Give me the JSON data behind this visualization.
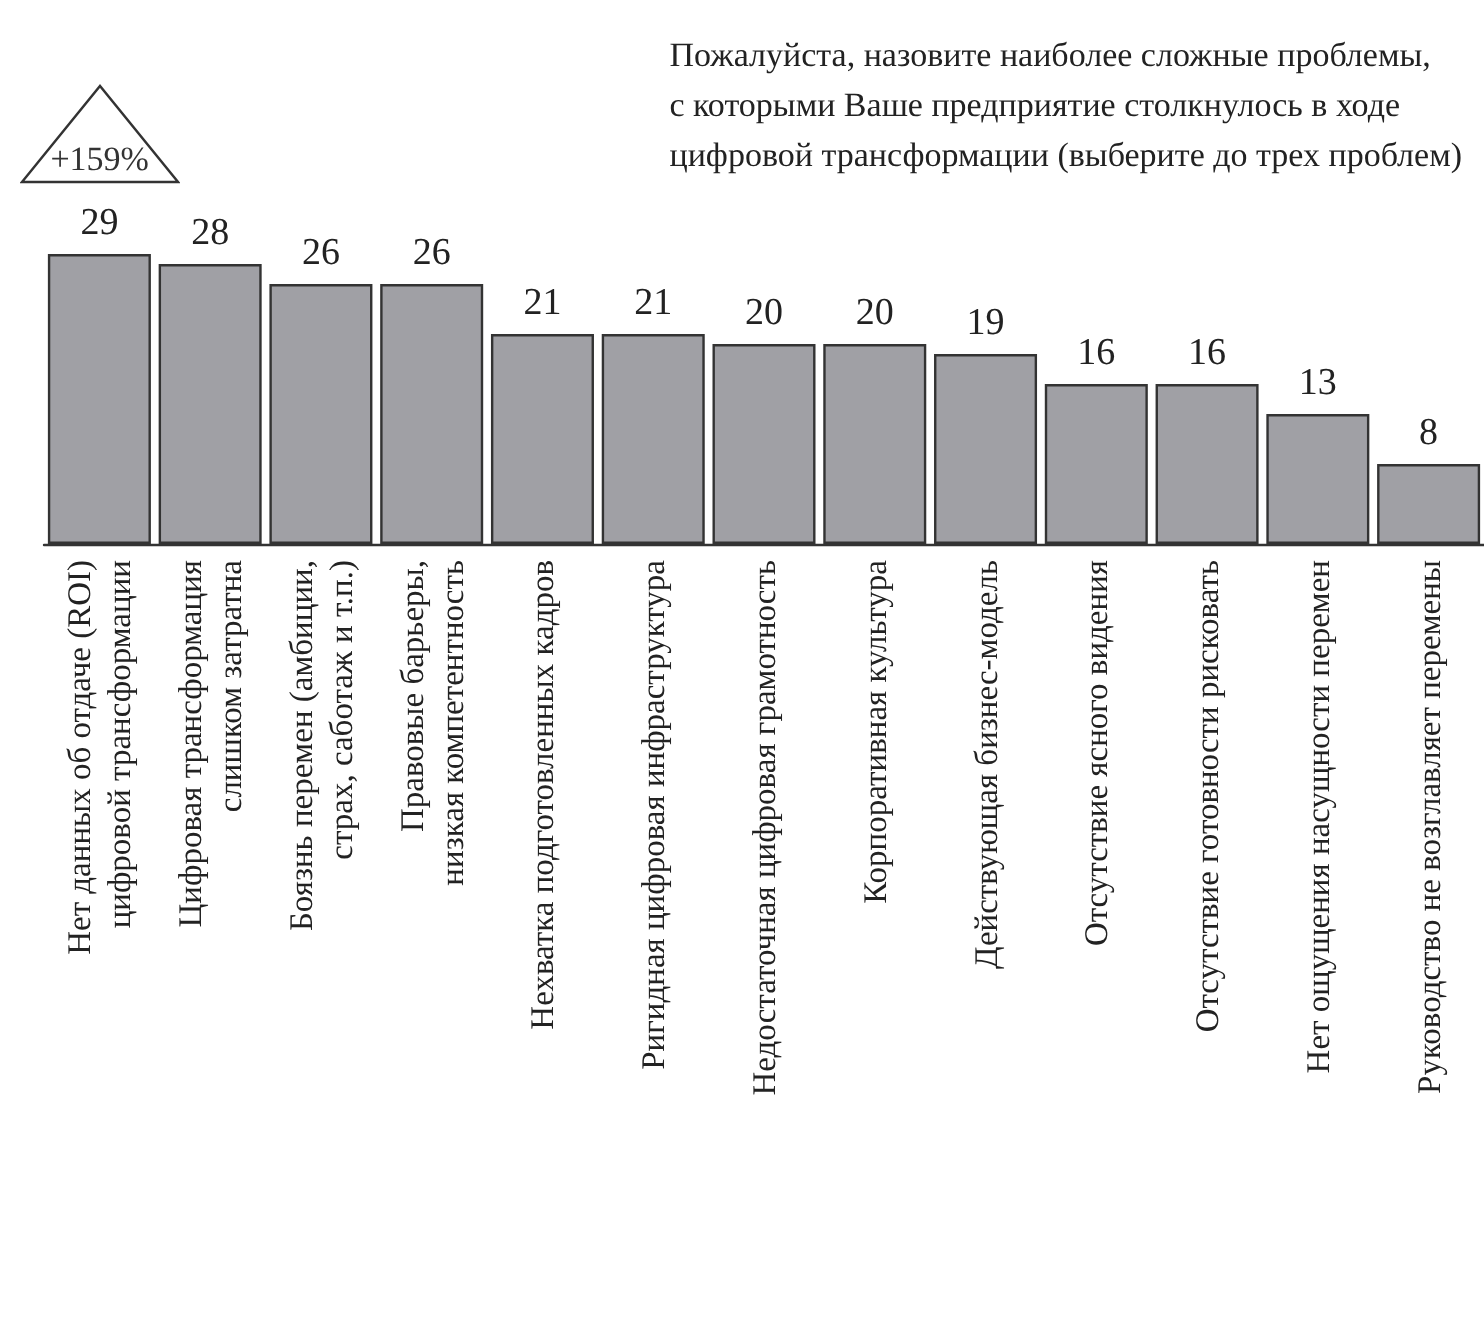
{
  "chart_data": {
    "type": "bar",
    "title": "Пожалуйста, назовите наиболее сложные проблемы,\nс которыми Ваше предприятие столкнулось в ходе\nцифровой трансформации (выберите до трех проблем)",
    "categories": [
      "Нет данных об отдаче (ROI)\nцифровой трансформации",
      "Цифровая трансформация\nслишком затратна",
      "Боязнь перемен (амбиции,\nстрах, саботаж и т.п.)",
      "Правовые барьеры,\nнизкая компетентность",
      "Нехватка подготовленных кадров",
      "Ригидная цифровая инфраструктура",
      "Недостаточная цифровая грамотность",
      "Корпоративная культура",
      "Действующая бизнес-модель",
      "Отсутствие ясного видения",
      "Отсутствие готовности рисковать",
      "Нет ощущения насущности перемен",
      "Руководство не возглавляет перемены"
    ],
    "values": [
      29,
      28,
      26,
      26,
      21,
      21,
      20,
      20,
      19,
      16,
      16,
      13,
      8
    ],
    "color": "#a0a0a5",
    "data_labels": true,
    "annotations": [
      "+159%"
    ]
  }
}
